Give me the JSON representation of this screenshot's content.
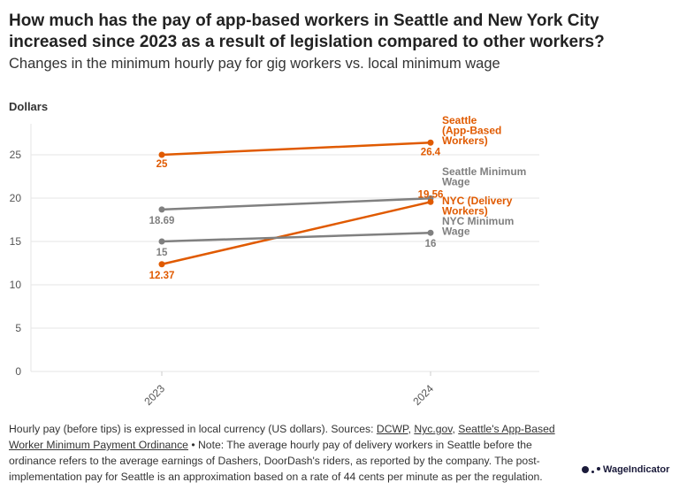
{
  "title": "How much has the pay of app-based workers in Seattle and New York City increased since 2023 as a result of legislation compared to other workers?",
  "subtitle": "Changes in the minimum hourly pay for gig workers vs. local minimum wage",
  "footer": {
    "text1": "Hourly pay (before tips) is expressed in local currency (US dollars). Sources: ",
    "link1": "DCWP",
    "sep1": ", ",
    "link2": "Nyc.gov",
    "sep2": ", ",
    "link3": "Seattle's App-Based Worker Minimum Payment Ordinance",
    "text2": " • Note: The average hourly pay of delivery workers in Seattle before the ordinance refers to the average earnings of Dashers, DoorDash's riders, as reported by the company. The post-implementation pay for Seattle is an approximation based on a rate of 44 cents per minute as per the regulation."
  },
  "logo": "WageIndicator",
  "chart_data": {
    "type": "line",
    "ylabel": "Dollars",
    "x": [
      "2023",
      "2024"
    ],
    "ylim": [
      0,
      27
    ],
    "yticks": [
      0,
      5,
      10,
      15,
      20,
      25
    ],
    "grid": true,
    "series": [
      {
        "name": "Seattle (App-Based Workers)",
        "label_lines": [
          "Seattle",
          "(App-Based",
          "Workers)"
        ],
        "values": [
          25,
          26.4
        ],
        "labels": [
          "25",
          "26.4"
        ],
        "color": "#e05a00"
      },
      {
        "name": "Seattle Minimum Wage",
        "label_lines": [
          "Seattle Minimum",
          "Wage"
        ],
        "values": [
          18.69,
          19.97
        ],
        "labels": [
          "18.69",
          null
        ],
        "color": "#808080"
      },
      {
        "name": "NYC (Delivery Workers)",
        "label_lines": [
          "NYC (Delivery",
          "Workers)"
        ],
        "values": [
          12.37,
          19.56
        ],
        "labels": [
          "12.37",
          "19.56"
        ],
        "color": "#e05a00"
      },
      {
        "name": "NYC Minimum Wage",
        "label_lines": [
          "NYC Minimum",
          "Wage"
        ],
        "values": [
          15,
          16
        ],
        "labels": [
          "15",
          "16"
        ],
        "color": "#808080"
      }
    ]
  }
}
